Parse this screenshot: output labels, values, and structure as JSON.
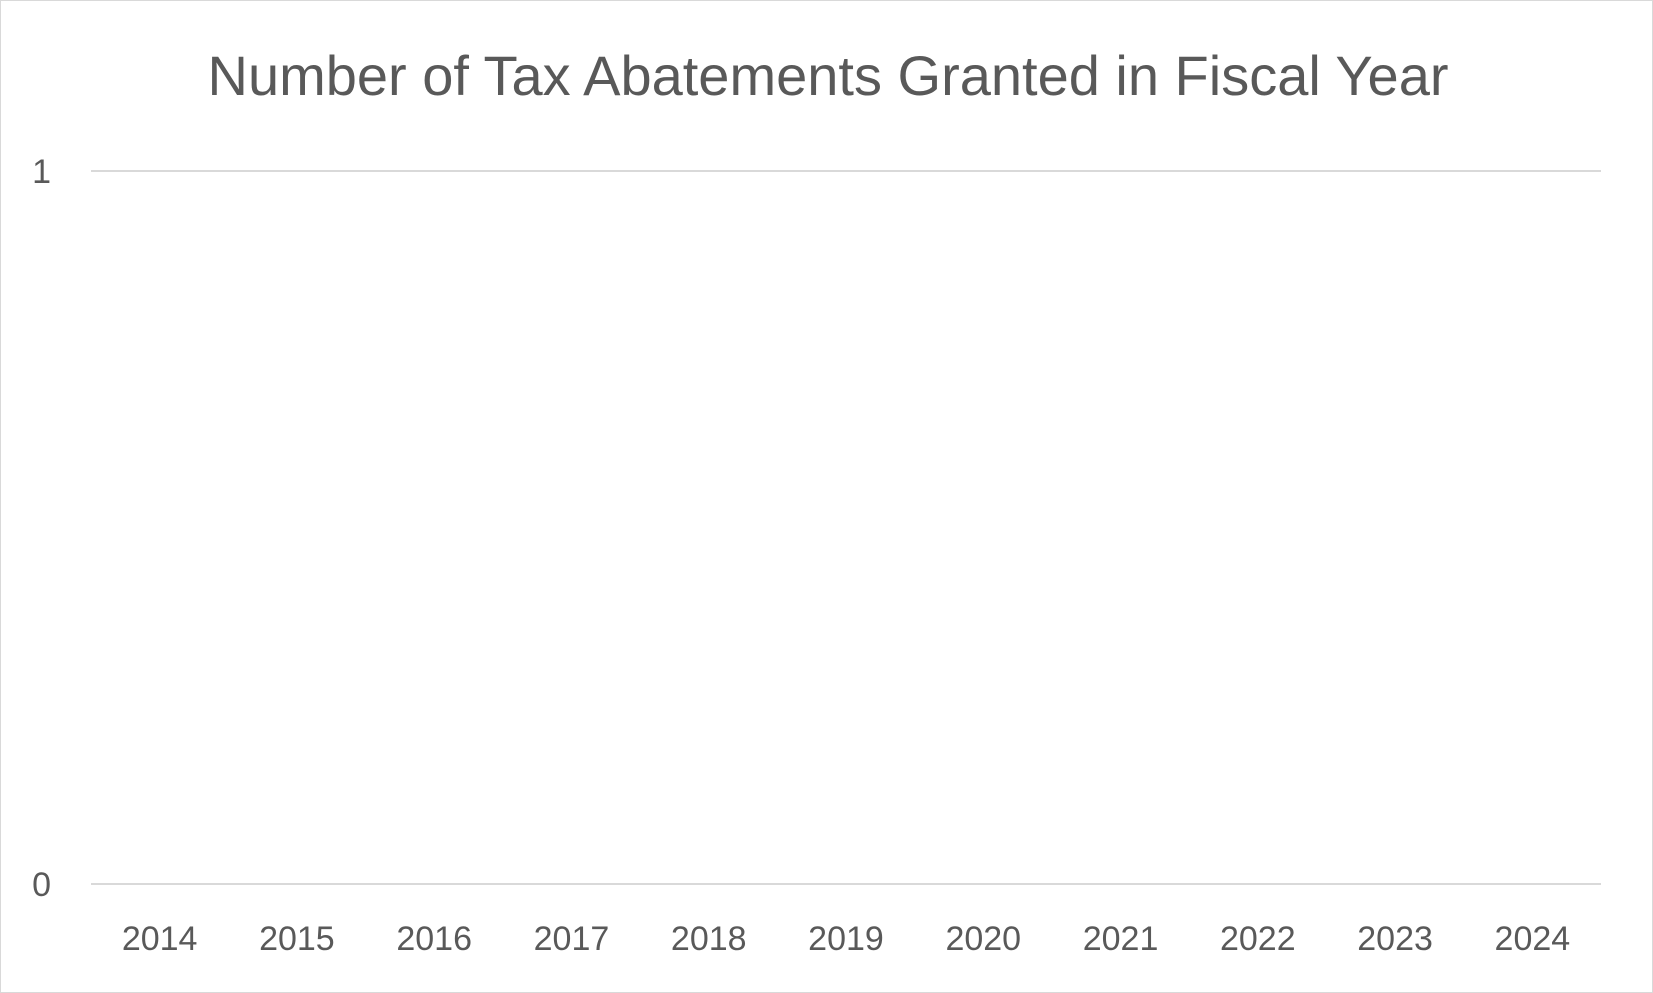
{
  "chart_data": {
    "type": "bar",
    "title": "Number of Tax Abatements Granted in Fiscal Year",
    "xlabel": "",
    "ylabel": "",
    "categories": [
      "2014",
      "2015",
      "2016",
      "2017",
      "2018",
      "2019",
      "2020",
      "2021",
      "2022",
      "2023",
      "2024"
    ],
    "values": [
      0,
      0,
      0,
      0,
      0,
      0,
      0,
      0,
      0,
      0,
      0
    ],
    "ylim": [
      0,
      1
    ],
    "yticks": [
      "0",
      "1"
    ],
    "grid": true,
    "legend": "none",
    "colors": {
      "text": "#595959",
      "gridline": "#d9d9d9",
      "border": "#d9d9d9",
      "background": "#ffffff"
    }
  }
}
